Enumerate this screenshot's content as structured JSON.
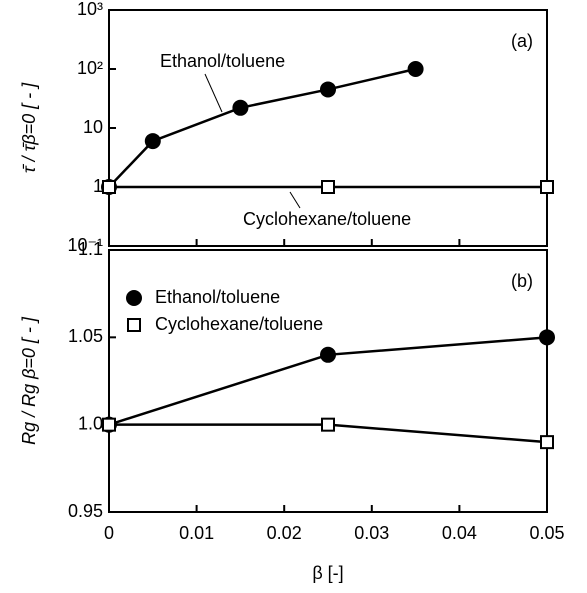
{
  "chart_data": [
    {
      "type": "scatter-line",
      "label": "(a)",
      "ylabel": "τ̄ / τ̄β=0  [ - ]",
      "log_y": true,
      "legend": false,
      "xlim": [
        0,
        0.05
      ],
      "ylim": [
        0.1,
        1000
      ],
      "yticks": [
        {
          "value": 1000,
          "label": "10³"
        },
        {
          "value": 100,
          "label": "10²"
        },
        10,
        1,
        {
          "value": 0.1,
          "label": "10⁻¹"
        }
      ],
      "series": [
        {
          "name": "Ethanol/toluene",
          "color": "#000",
          "marker": "circle",
          "x": [
            0,
            0.005,
            0.015,
            0.025,
            0.035
          ],
          "values": [
            1,
            6,
            22,
            45,
            100
          ]
        },
        {
          "name": "Cyclohexane/toluene",
          "color": "#000",
          "marker": "square",
          "x": [
            0,
            0.025,
            0.05
          ],
          "values": [
            1,
            1,
            1
          ]
        }
      ]
    },
    {
      "type": "scatter-line",
      "label": "(b)",
      "ylabel": "Rg / Rg β=0  [ - ]",
      "xlabel": "β  [-]",
      "log_y": false,
      "legend": "upper left",
      "xlim": [
        0,
        0.05
      ],
      "ylim": [
        0.95,
        1.1
      ],
      "xticks": [
        0,
        0.01,
        0.02,
        0.03,
        0.04,
        0.05
      ],
      "yticks": [
        1.1,
        1.05,
        {
          "value": 1,
          "label": "1.0"
        },
        0.95
      ],
      "series": [
        {
          "name": "Ethanol/toluene",
          "color": "#000",
          "marker": "circle",
          "x": [
            0,
            0.025,
            0.05
          ],
          "values": [
            1,
            1.04,
            1.05
          ]
        },
        {
          "name": "Cyclohexane/toluene",
          "color": "#000",
          "marker": "square",
          "x": [
            0,
            0.025,
            0.05
          ],
          "values": [
            1,
            1,
            0.99
          ]
        }
      ]
    }
  ]
}
